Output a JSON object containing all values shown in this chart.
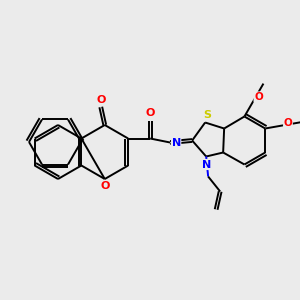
{
  "bg_color": "#ebebeb",
  "bond_color": "#000000",
  "atom_colors": {
    "O": "#ff0000",
    "N": "#0000ff",
    "S": "#cccc00",
    "C": "#000000"
  },
  "figsize": [
    3.0,
    3.0
  ],
  "dpi": 100,
  "scale": 1.0
}
